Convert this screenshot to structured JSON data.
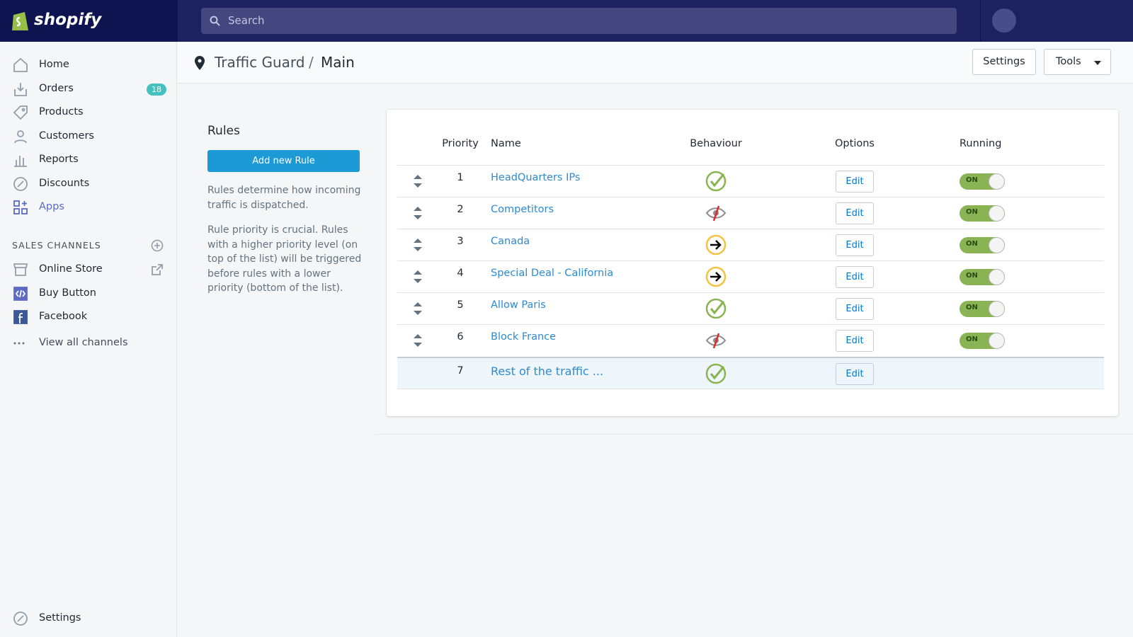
{
  "header": {
    "logo": "shopify",
    "search_placeholder": "Search"
  },
  "sidebar": {
    "nav": [
      {
        "label": "Home",
        "icon": "home"
      },
      {
        "label": "Orders",
        "icon": "orders",
        "badge": 18
      },
      {
        "label": "Products",
        "icon": "tag"
      },
      {
        "label": "Customers",
        "icon": "person"
      },
      {
        "label": "Reports",
        "icon": "chart"
      },
      {
        "label": "Discounts",
        "icon": "discount"
      },
      {
        "label": "Apps",
        "icon": "apps",
        "active": true
      }
    ],
    "sales_channels_title": "SALES CHANNELS",
    "channels": [
      {
        "label": "Online Store",
        "icon": "store",
        "external": true
      },
      {
        "label": "Buy Button",
        "icon": "code"
      },
      {
        "label": "Facebook",
        "icon": "facebook"
      }
    ],
    "view_all": "View all channels",
    "settings": "Settings"
  },
  "breadcrumb": {
    "app": "Traffic Guard",
    "separator": "/",
    "page": "Main"
  },
  "top_actions": {
    "settings": "Settings",
    "tools": "Tools"
  },
  "rules_panel": {
    "title": "Rules",
    "add_button": "Add new Rule",
    "paragraphs": [
      "Rules determine how incoming traffic is dispatched.",
      "Rule priority is crucial. Rules with a higher priority level (on top of the list) will be triggered before rules with a lower priority (bottom of the list)."
    ]
  },
  "table": {
    "columns": [
      "Priority",
      "Name",
      "Behaviour",
      "Options",
      "Running"
    ],
    "rows": [
      {
        "priority": 1,
        "name": "HeadQuarters IPs",
        "behaviour": "allow",
        "option": "Edit",
        "running": "ON"
      },
      {
        "priority": 2,
        "name": "Competitors",
        "behaviour": "hide",
        "option": "Edit",
        "running": "ON"
      },
      {
        "priority": 3,
        "name": "Canada",
        "behaviour": "redirect",
        "option": "Edit",
        "running": "ON"
      },
      {
        "priority": 4,
        "name": "Special Deal - California",
        "behaviour": "redirect",
        "option": "Edit",
        "running": "ON"
      },
      {
        "priority": 5,
        "name": "Allow Paris",
        "behaviour": "allow",
        "option": "Edit",
        "running": "ON"
      },
      {
        "priority": 6,
        "name": "Block France",
        "behaviour": "hide",
        "option": "Edit",
        "running": "ON"
      },
      {
        "priority": 7,
        "name": "Rest of the traffic ...",
        "behaviour": "allow",
        "option": "Edit",
        "highlight": true
      }
    ]
  }
}
